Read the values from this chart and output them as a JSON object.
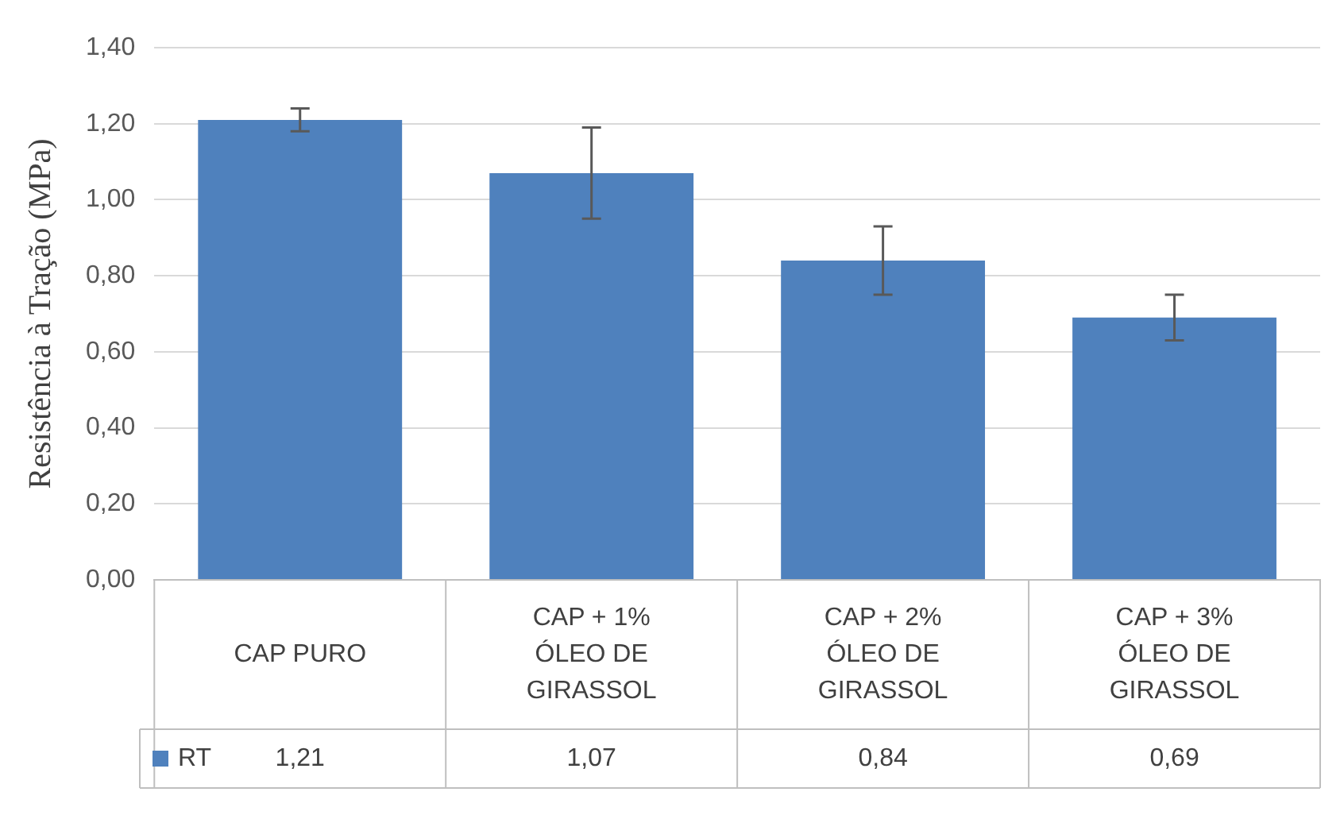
{
  "chart_data": {
    "type": "bar",
    "ylabel": "Resistência à Tração (MPa)",
    "categories": [
      "CAP PURO",
      "CAP + 1% ÓLEO DE GIRASSOL",
      "CAP + 2% ÓLEO DE GIRASSOL",
      "CAP + 3% ÓLEO DE GIRASSOL"
    ],
    "series": [
      {
        "name": "RT",
        "color": "#4f81bd",
        "values": [
          1.21,
          1.07,
          0.84,
          0.69
        ],
        "errors": [
          0.03,
          0.12,
          0.09,
          0.06
        ],
        "value_labels": [
          "1,21",
          "1,07",
          "0,84",
          "0,69"
        ]
      }
    ],
    "ylim": [
      0,
      1.4
    ],
    "yticks": [
      {
        "value": 0,
        "label": "0,00"
      },
      {
        "value": 0.2,
        "label": "0,20"
      },
      {
        "value": 0.4,
        "label": "0,40"
      },
      {
        "value": 0.6,
        "label": "0,60"
      },
      {
        "value": 0.8,
        "label": "0,80"
      },
      {
        "value": 1,
        "label": "1,00"
      },
      {
        "value": 1.2,
        "label": "1,20"
      },
      {
        "value": 1.4,
        "label": "1,40"
      }
    ],
    "grid": "y",
    "legend": "bottom"
  }
}
